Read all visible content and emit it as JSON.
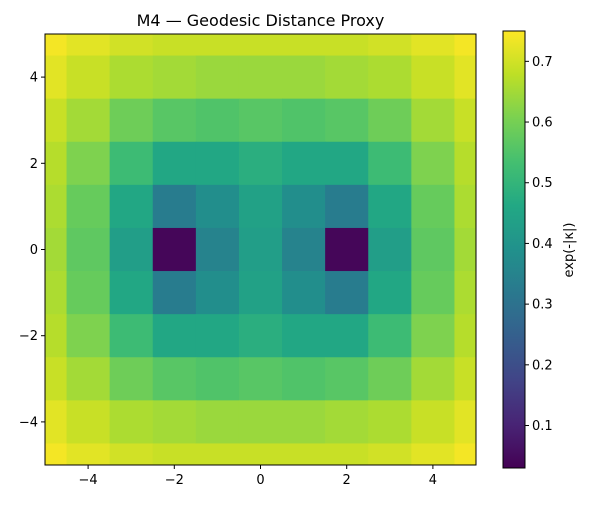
{
  "chart_data": {
    "type": "heatmap",
    "title": "M4 — Geodesic Distance Proxy",
    "xlabel": "",
    "ylabel": "",
    "xlim": [
      -5,
      5
    ],
    "ylim": [
      -5,
      5
    ],
    "x_ticks": [
      -4,
      -2,
      0,
      2,
      4
    ],
    "y_ticks": [
      4,
      2,
      0,
      -2,
      -4
    ],
    "colorbar": {
      "label": "exp(-|κ|)",
      "range": [
        0.03,
        0.75
      ],
      "ticks": [
        0.1,
        0.2,
        0.3,
        0.4,
        0.5,
        0.6,
        0.7
      ]
    },
    "colormap": "viridis",
    "grid": false,
    "x": [
      -5,
      -4,
      -3,
      -2,
      -1,
      0,
      1,
      2,
      3,
      4,
      5
    ],
    "y": [
      5,
      4,
      3,
      2,
      1,
      0,
      -1,
      -2,
      -3,
      -4,
      -5
    ],
    "z": [
      [
        0.74,
        0.72,
        0.7,
        0.69,
        0.69,
        0.69,
        0.69,
        0.69,
        0.7,
        0.72,
        0.74
      ],
      [
        0.72,
        0.69,
        0.66,
        0.65,
        0.64,
        0.64,
        0.64,
        0.65,
        0.66,
        0.69,
        0.72
      ],
      [
        0.69,
        0.65,
        0.59,
        0.56,
        0.55,
        0.56,
        0.55,
        0.56,
        0.59,
        0.65,
        0.69
      ],
      [
        0.67,
        0.61,
        0.52,
        0.46,
        0.46,
        0.48,
        0.46,
        0.46,
        0.52,
        0.61,
        0.67
      ],
      [
        0.66,
        0.58,
        0.46,
        0.33,
        0.38,
        0.44,
        0.38,
        0.33,
        0.46,
        0.58,
        0.66
      ],
      [
        0.65,
        0.57,
        0.43,
        0.04,
        0.35,
        0.43,
        0.35,
        0.04,
        0.43,
        0.57,
        0.65
      ],
      [
        0.66,
        0.58,
        0.46,
        0.33,
        0.38,
        0.44,
        0.38,
        0.33,
        0.46,
        0.58,
        0.66
      ],
      [
        0.67,
        0.61,
        0.52,
        0.46,
        0.46,
        0.48,
        0.46,
        0.46,
        0.52,
        0.61,
        0.67
      ],
      [
        0.69,
        0.65,
        0.59,
        0.56,
        0.55,
        0.56,
        0.55,
        0.56,
        0.59,
        0.65,
        0.69
      ],
      [
        0.72,
        0.69,
        0.66,
        0.65,
        0.64,
        0.64,
        0.64,
        0.65,
        0.66,
        0.69,
        0.72
      ],
      [
        0.74,
        0.72,
        0.7,
        0.69,
        0.69,
        0.69,
        0.69,
        0.69,
        0.7,
        0.72,
        0.74
      ]
    ]
  }
}
